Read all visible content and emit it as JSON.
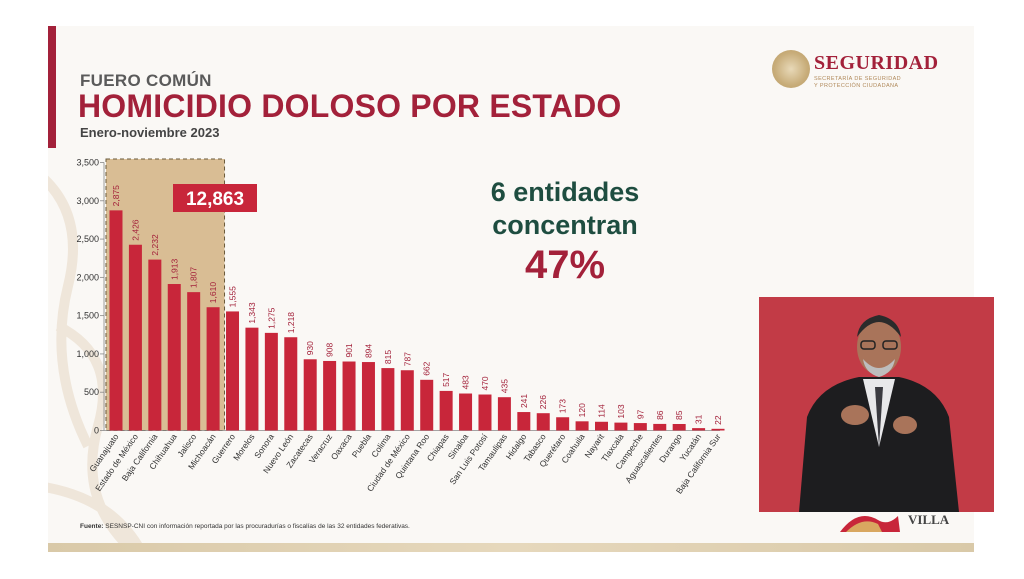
{
  "header": {
    "pre_title": "FUERO COMÚN",
    "title": "HOMICIDIO DOLOSO POR ESTADO",
    "subtitle": "Enero-noviembre 2023"
  },
  "logo": {
    "name": "SEGURIDAD",
    "sub1": "SECRETARÍA DE SEGURIDAD",
    "sub2": "Y PROTECCIÓN CIUDADANA"
  },
  "callout": {
    "line1": "6 entidades",
    "line2": "concentran",
    "percent": "47%"
  },
  "highlight_total": "12,863",
  "source": {
    "label": "Fuente:",
    "text": " SESNSP-CNI con información reportada por las procuradurías o fiscalías de las 32 entidades federativas."
  },
  "bottom_logo_text": "VILLA",
  "colors": {
    "bar": "#c8263a",
    "accent": "#a3213a",
    "highlight_box": "#d9bd94",
    "callout_green": "#1e4d40"
  },
  "chart_data": {
    "type": "bar",
    "title": "HOMICIDIO DOLOSO POR ESTADO",
    "categories": [
      "Guanajuato",
      "Estado de México",
      "Baja California",
      "Chihuahua",
      "Jalisco",
      "Michoacán",
      "Guerrero",
      "Morelos",
      "Sonora",
      "Nuevo León",
      "Zacatecas",
      "Veracruz",
      "Oaxaca",
      "Puebla",
      "Colima",
      "Ciudad de México",
      "Quintana Roo",
      "Chiapas",
      "Sinaloa",
      "San Luis Potosí",
      "Tamaulipas",
      "Hidalgo",
      "Tabasco",
      "Querétaro",
      "Coahuila",
      "Nayarit",
      "Tlaxcala",
      "Campeche",
      "Aguascalientes",
      "Durango",
      "Yucatán",
      "Baja California Sur"
    ],
    "values": [
      2875,
      2426,
      2232,
      1913,
      1807,
      1610,
      1555,
      1343,
      1275,
      1218,
      930,
      908,
      901,
      894,
      815,
      787,
      662,
      517,
      483,
      470,
      435,
      241,
      226,
      173,
      120,
      114,
      103,
      97,
      86,
      85,
      31,
      22
    ],
    "value_labels": [
      "2,875",
      "2,426",
      "2,232",
      "1,913",
      "1,807",
      "1,610",
      "1,555",
      "1,343",
      "1,275",
      "1,218",
      "930",
      "908",
      "901",
      "894",
      "815",
      "787",
      "662",
      "517",
      "483",
      "470",
      "435",
      "241",
      "226",
      "173",
      "120",
      "114",
      "103",
      "97",
      "86",
      "85",
      "31",
      "22"
    ],
    "ylim": [
      0,
      3500
    ],
    "yticks": [
      0,
      500,
      1000,
      1500,
      2000,
      2500,
      3000,
      3500
    ],
    "ytick_labels": [
      "0",
      "500",
      "1,000",
      "1,500",
      "2,000",
      "2,500",
      "3,000",
      "3,500"
    ],
    "highlighted_categories": 6,
    "grid": false,
    "legend": "none"
  }
}
